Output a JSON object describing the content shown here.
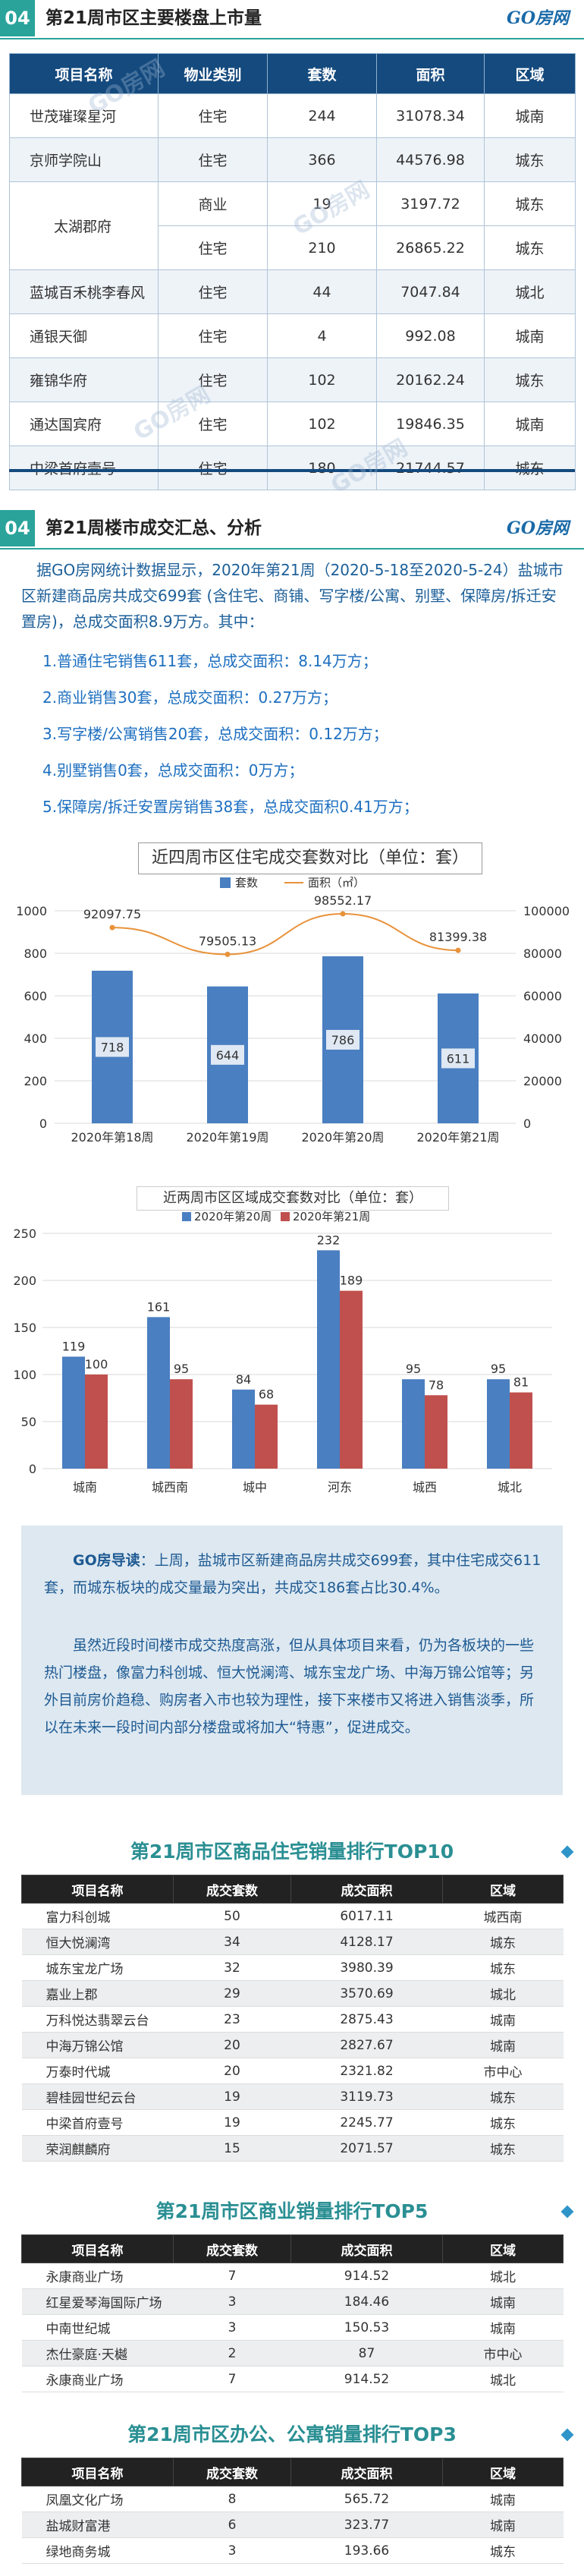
{
  "logo": "GO房网",
  "watermark": "GO房网",
  "section1": {
    "num": "04",
    "title": "第21周市区主要楼盘上市量",
    "headers": [
      "项目名称",
      "物业类别",
      "套数",
      "面积",
      "区域"
    ],
    "rows": [
      [
        "世茂璀璨星河",
        "住宅",
        "244",
        "31078.34",
        "城南"
      ],
      [
        "京师学院山",
        "住宅",
        "366",
        "44576.98",
        "城东"
      ],
      [
        "太湖郡府",
        "商业",
        "19",
        "3197.72",
        "城东"
      ],
      [
        "",
        "住宅",
        "210",
        "26865.22",
        "城东"
      ],
      [
        "蓝城百禾桃李春风",
        "住宅",
        "44",
        "7047.84",
        "城北"
      ],
      [
        "通银天御",
        "住宅",
        "4",
        "992.08",
        "城南"
      ],
      [
        "雍锦华府",
        "住宅",
        "102",
        "20162.24",
        "城东"
      ],
      [
        "通达国宾府",
        "住宅",
        "102",
        "19846.35",
        "城南"
      ],
      [
        "中梁首府壹号",
        "住宅",
        "180",
        "21744.57",
        "城东"
      ]
    ]
  },
  "section2": {
    "num": "04",
    "title": "第21周楼市成交汇总、分析",
    "intro": "据GO房网统计数据显示，2020年第21周（2020-5-18至2020-5-24）盐城市区新建商品房共成交699套 (含住宅、商铺、写字楼/公寓、别墅、保障房/拆迁安置房)，总成交面积8.9万方。其中：",
    "items": [
      "1.普通住宅销售611套，总成交面积：8.14万方；",
      "2.商业销售30套，总成交面积：0.27万方；",
      "3.写字楼/公寓销售20套，总成交面积：0.12万方；",
      "4.别墅销售0套，总成交面积：0万方；",
      "5.保障房/拆迁安置房销售38套，总成交面积0.41万方；"
    ]
  },
  "chart_data": [
    {
      "type": "bar",
      "title": "近四周市区住宅成交套数对比（单位：套）",
      "categories": [
        "2020年第18周",
        "2020年第19周",
        "2020年第20周",
        "2020年第21周"
      ],
      "series": [
        {
          "name": "套数",
          "type": "bar",
          "values": [
            718,
            644,
            786,
            611
          ],
          "color": "#4a7fc1"
        },
        {
          "name": "面积（㎡）",
          "type": "line",
          "axis": "right",
          "values": [
            92097.75,
            79505.13,
            98552.17,
            81399.38
          ],
          "color": "#e8923a"
        }
      ],
      "ylim": [
        0,
        1000
      ],
      "y_ticks": [
        0,
        200,
        400,
        600,
        800,
        1000
      ],
      "y2lim": [
        0,
        100000
      ],
      "y2_ticks": [
        0,
        20000,
        40000,
        60000,
        80000,
        100000
      ],
      "legend": "top"
    },
    {
      "type": "bar",
      "title": "近两周市区区域成交套数对比（单位：套）",
      "categories": [
        "城南",
        "城西南",
        "城中",
        "河东",
        "城西",
        "城北"
      ],
      "series": [
        {
          "name": "2020年第20周",
          "values": [
            119,
            161,
            84,
            232,
            95,
            95
          ],
          "color": "#4a7fc1"
        },
        {
          "name": "2020年第21周",
          "values": [
            100,
            95,
            68,
            189,
            78,
            81
          ],
          "color": "#c0504d"
        }
      ],
      "ylim": [
        0,
        250
      ],
      "y_ticks": [
        0,
        50,
        100,
        150,
        200,
        250
      ],
      "legend": "top"
    }
  ],
  "notice": {
    "p1_label": "GO房导读",
    "p1": "：上周，盐城市区新建商品房共成交699套，其中住宅成交611套，而城东板块的成交量最为突出，共成交186套占比30.4%。",
    "p2": "虽然近段时间楼市成交热度高涨，但从具体项目来看，仍为各板块的一些热门楼盘，像富力科创城、恒大悦澜湾、城东宝龙广场、中海万锦公馆等；另外目前房价趋稳、购房者入市也较为理性，接下来楼市又将进入销售淡季，所以在未来一段时间内部分楼盘或将加大“特惠”，促进成交。"
  },
  "top10": {
    "title": "第21周市区商品住宅销量排行TOP10",
    "headers": [
      "项目名称",
      "成交套数",
      "成交面积",
      "区域"
    ],
    "rows": [
      [
        "富力科创城",
        "50",
        "6017.11",
        "城西南"
      ],
      [
        "恒大悦澜湾",
        "34",
        "4128.17",
        "城东"
      ],
      [
        "城东宝龙广场",
        "32",
        "3980.39",
        "城东"
      ],
      [
        "嘉业上郡",
        "29",
        "3570.69",
        "城北"
      ],
      [
        "万科悦达翡翠云台",
        "23",
        "2875.43",
        "城南"
      ],
      [
        "中海万锦公馆",
        "20",
        "2827.67",
        "城南"
      ],
      [
        "万泰时代城",
        "20",
        "2321.82",
        "市中心"
      ],
      [
        "碧桂园世纪云台",
        "19",
        "3119.73",
        "城东"
      ],
      [
        "中梁首府壹号",
        "19",
        "2245.77",
        "城东"
      ],
      [
        "荣润麒麟府",
        "15",
        "2071.57",
        "城东"
      ]
    ]
  },
  "top5": {
    "title": "第21周市区商业销量排行TOP5",
    "headers": [
      "项目名称",
      "成交套数",
      "成交面积",
      "区域"
    ],
    "rows": [
      [
        "永康商业广场",
        "7",
        "914.52",
        "城北"
      ],
      [
        "红星爱琴海国际广场",
        "3",
        "184.46",
        "城南"
      ],
      [
        "中南世纪城",
        "3",
        "150.53",
        "城南"
      ],
      [
        "杰仕豪庭·天樾",
        "2",
        "87",
        "市中心"
      ],
      [
        "永康商业广场",
        "7",
        "914.52",
        "城北"
      ]
    ]
  },
  "top3": {
    "title": "第21周市区办公、公寓销量排行TOP3",
    "headers": [
      "项目名称",
      "成交套数",
      "成交面积",
      "区域"
    ],
    "rows": [
      [
        "凤凰文化广场",
        "8",
        "565.72",
        "城南"
      ],
      [
        "盐城财富港",
        "6",
        "323.77",
        "城南"
      ],
      [
        "绿地商务城",
        "3",
        "193.66",
        "城东"
      ]
    ]
  }
}
